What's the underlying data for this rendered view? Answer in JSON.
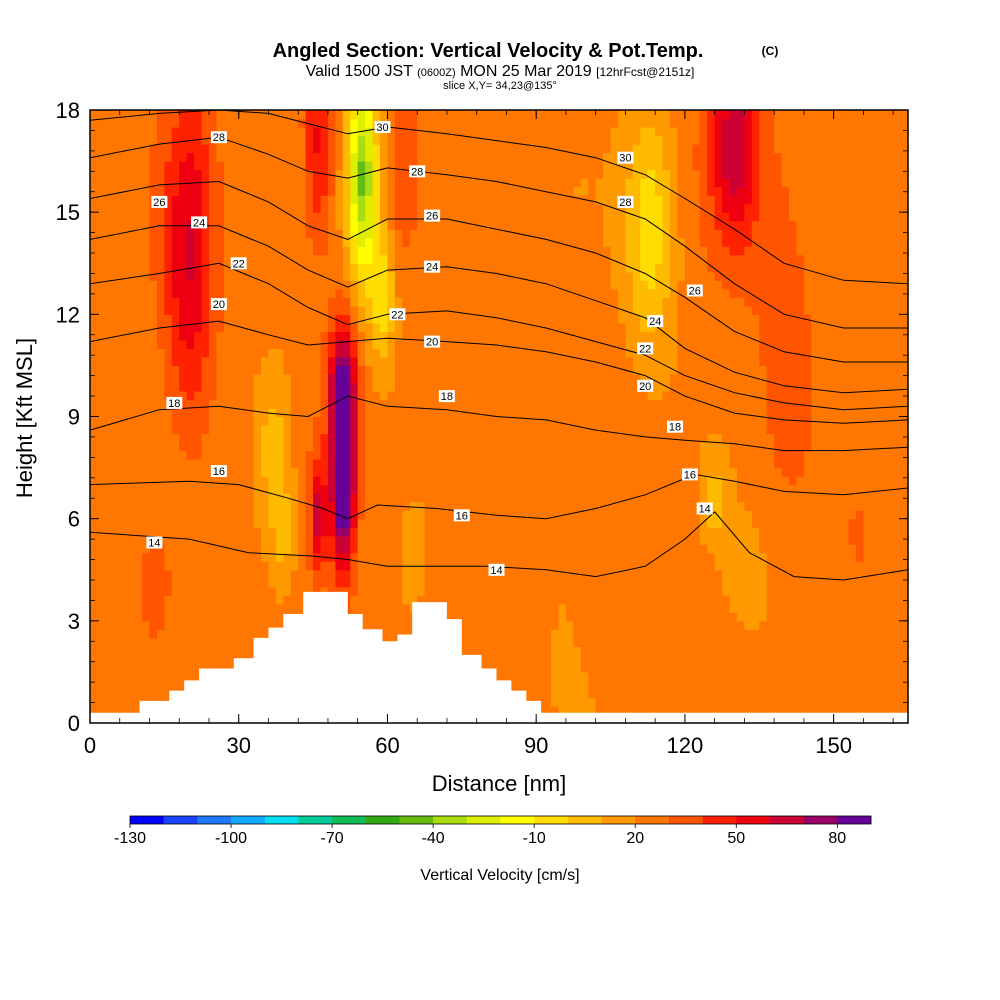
{
  "chart_data": {
    "type": "heatmap",
    "title": "Angled Section: Vertical Velocity & Pot.Temp.",
    "title_mark": "(C)",
    "subtitle": {
      "a": "Valid 1500 JST",
      "b": "(0600Z)",
      "c": "MON 25 Mar 2019",
      "d": "[12hrFcst@2151z]"
    },
    "slice_text": "slice X,Y= 34,23@135°",
    "xlabel": "Distance [nm]",
    "ylabel": "Height [Kft MSL]",
    "xlim": [
      0,
      165
    ],
    "ylim": [
      0,
      18
    ],
    "x_ticks": [
      {
        "value": 0,
        "label": "0"
      },
      {
        "value": 30,
        "label": "30"
      },
      {
        "value": 60,
        "label": "60"
      },
      {
        "value": 90,
        "label": "90"
      },
      {
        "value": 120,
        "label": "120"
      },
      {
        "value": 150,
        "label": "150"
      }
    ],
    "y_ticks": [
      {
        "value": 0,
        "label": "0"
      },
      {
        "value": 3,
        "label": "3"
      },
      {
        "value": 6,
        "label": "6"
      },
      {
        "value": 9,
        "label": "9"
      },
      {
        "value": 12,
        "label": "12"
      },
      {
        "value": 15,
        "label": "15"
      },
      {
        "value": 18,
        "label": "18"
      }
    ],
    "colorbar": {
      "title": "Vertical Velocity [cm/s]",
      "colors": [
        "#0000ff",
        "#1a44ff",
        "#2277ff",
        "#11aaff",
        "#00ddee",
        "#00cc99",
        "#11bb55",
        "#33aa11",
        "#66bb11",
        "#aadd11",
        "#ddee00",
        "#ffff00",
        "#ffdd00",
        "#ffbb00",
        "#ff9900",
        "#ff7700",
        "#ff5500",
        "#ff2200",
        "#ee0011",
        "#cc0033",
        "#990066",
        "#660099"
      ],
      "tick_labels": [
        {
          "index": 0,
          "label": "-130"
        },
        {
          "index": 3,
          "label": "-100"
        },
        {
          "index": 6,
          "label": "-70"
        },
        {
          "index": 9,
          "label": "-40"
        },
        {
          "index": 12,
          "label": "-10"
        },
        {
          "index": 15,
          "label": "20"
        },
        {
          "index": 18,
          "label": "50"
        },
        {
          "index": 21,
          "label": "80"
        }
      ]
    },
    "terrain": [
      [
        0,
        0.3
      ],
      [
        10,
        0.3
      ],
      [
        10,
        0.65
      ],
      [
        16,
        0.65
      ],
      [
        16,
        0.95
      ],
      [
        19,
        0.95
      ],
      [
        19,
        1.25
      ],
      [
        22,
        1.25
      ],
      [
        22,
        1.6
      ],
      [
        29,
        1.6
      ],
      [
        29,
        1.9
      ],
      [
        33,
        1.9
      ],
      [
        33,
        2.5
      ],
      [
        36,
        2.5
      ],
      [
        36,
        2.8
      ],
      [
        39,
        2.8
      ],
      [
        39,
        3.2
      ],
      [
        43,
        3.2
      ],
      [
        43,
        3.85
      ],
      [
        52,
        3.85
      ],
      [
        52,
        3.2
      ],
      [
        55,
        3.2
      ],
      [
        55,
        2.75
      ],
      [
        59,
        2.75
      ],
      [
        59,
        2.4
      ],
      [
        62,
        2.4
      ],
      [
        62,
        2.6
      ],
      [
        65,
        2.6
      ],
      [
        65,
        3.55
      ],
      [
        72,
        3.55
      ],
      [
        72,
        3.05
      ],
      [
        75,
        3.05
      ],
      [
        75,
        2.0
      ],
      [
        79,
        2.0
      ],
      [
        79,
        1.6
      ],
      [
        82,
        1.6
      ],
      [
        82,
        1.25
      ],
      [
        85,
        1.25
      ],
      [
        85,
        0.95
      ],
      [
        88,
        0.95
      ],
      [
        88,
        0.65
      ],
      [
        91,
        0.65
      ],
      [
        91,
        0.3
      ],
      [
        165,
        0.3
      ]
    ],
    "velocity_field": [
      {
        "x": 20,
        "y": 13.5,
        "sx": 5,
        "sy": 5,
        "v": 35
      },
      {
        "x": 13,
        "y": 4.5,
        "sx": 4,
        "sy": 2,
        "v": 10
      },
      {
        "x": 37,
        "y": 8,
        "sx": 4,
        "sy": 2.5,
        "v": -22
      },
      {
        "x": 39,
        "y": 5.5,
        "sx": 2.5,
        "sy": 1.5,
        "v": -15
      },
      {
        "x": 46,
        "y": 17,
        "sx": 3,
        "sy": 3,
        "v": 30
      },
      {
        "x": 51,
        "y": 7.5,
        "sx": 2.4,
        "sy": 2.8,
        "v": 85
      },
      {
        "x": 51,
        "y": 10,
        "sx": 3,
        "sy": 2,
        "v": 35
      },
      {
        "x": 46,
        "y": 6,
        "sx": 1.6,
        "sy": 1.6,
        "v": 40
      },
      {
        "x": 55,
        "y": 16,
        "sx": 3,
        "sy": 3,
        "v": -65
      },
      {
        "x": 59,
        "y": 12.5,
        "sx": 2.5,
        "sy": 2,
        "v": -30
      },
      {
        "x": 63,
        "y": 16.5,
        "sx": 2.5,
        "sy": 2.5,
        "v": 12
      },
      {
        "x": 65,
        "y": 4.5,
        "sx": 2.5,
        "sy": 1.4,
        "v": -10
      },
      {
        "x": 113,
        "y": 14.5,
        "sx": 5,
        "sy": 3.5,
        "v": -30
      },
      {
        "x": 126,
        "y": 6.5,
        "sx": 2,
        "sy": 1,
        "v": -20
      },
      {
        "x": 130,
        "y": 17,
        "sx": 5,
        "sy": 3,
        "v": 40
      },
      {
        "x": 140,
        "y": 11,
        "sx": 6,
        "sy": 5,
        "v": 12
      },
      {
        "x": 133,
        "y": 4,
        "sx": 6,
        "sy": 2,
        "v": -8
      },
      {
        "x": 155,
        "y": 4,
        "sx": 6,
        "sy": 3,
        "v": 5
      },
      {
        "x": 95,
        "y": 6,
        "sx": 6,
        "sy": 4,
        "v": -5
      }
    ],
    "isentropes": [
      {
        "theta": 14,
        "points": [
          [
            0,
            5.6
          ],
          [
            20,
            5.4
          ],
          [
            32,
            5.0
          ],
          [
            45,
            4.9
          ],
          [
            52,
            4.8
          ],
          [
            60,
            4.6
          ],
          [
            70,
            4.6
          ],
          [
            80,
            4.6
          ],
          [
            92,
            4.5
          ],
          [
            102,
            4.3
          ],
          [
            112,
            4.6
          ],
          [
            120,
            5.4
          ],
          [
            126,
            6.2
          ],
          [
            133,
            5.0
          ],
          [
            142,
            4.3
          ],
          [
            152,
            4.2
          ],
          [
            165,
            4.5
          ]
        ]
      },
      {
        "theta": 16,
        "points": [
          [
            0,
            7.0
          ],
          [
            20,
            7.1
          ],
          [
            30,
            7.0
          ],
          [
            40,
            6.6
          ],
          [
            47,
            6.3
          ],
          [
            52,
            6.0
          ],
          [
            58,
            6.4
          ],
          [
            70,
            6.3
          ],
          [
            82,
            6.1
          ],
          [
            92,
            6.0
          ],
          [
            102,
            6.3
          ],
          [
            112,
            6.7
          ],
          [
            122,
            7.3
          ],
          [
            130,
            7.1
          ],
          [
            140,
            6.8
          ],
          [
            152,
            6.7
          ],
          [
            165,
            6.9
          ]
        ]
      },
      {
        "theta": 18,
        "points": [
          [
            0,
            8.6
          ],
          [
            14,
            9.2
          ],
          [
            26,
            9.3
          ],
          [
            36,
            9.1
          ],
          [
            44,
            9.0
          ],
          [
            52,
            9.6
          ],
          [
            60,
            9.3
          ],
          [
            72,
            9.2
          ],
          [
            82,
            9.0
          ],
          [
            92,
            8.9
          ],
          [
            102,
            8.6
          ],
          [
            112,
            8.4
          ],
          [
            120,
            8.3
          ],
          [
            130,
            8.2
          ],
          [
            140,
            8.0
          ],
          [
            152,
            8.0
          ],
          [
            165,
            8.1
          ]
        ]
      },
      {
        "theta": 20,
        "points": [
          [
            0,
            11.2
          ],
          [
            14,
            11.6
          ],
          [
            26,
            11.8
          ],
          [
            36,
            11.4
          ],
          [
            44,
            11.1
          ],
          [
            52,
            11.2
          ],
          [
            60,
            11.3
          ],
          [
            72,
            11.2
          ],
          [
            82,
            11.1
          ],
          [
            92,
            10.9
          ],
          [
            102,
            10.6
          ],
          [
            112,
            10.2
          ],
          [
            120,
            9.6
          ],
          [
            130,
            9.1
          ],
          [
            140,
            8.9
          ],
          [
            152,
            8.8
          ],
          [
            165,
            8.9
          ]
        ]
      },
      {
        "theta": 22,
        "points": [
          [
            0,
            12.9
          ],
          [
            14,
            13.2
          ],
          [
            26,
            13.5
          ],
          [
            36,
            12.9
          ],
          [
            44,
            12.2
          ],
          [
            52,
            11.7
          ],
          [
            60,
            12.0
          ],
          [
            72,
            12.1
          ],
          [
            82,
            11.9
          ],
          [
            92,
            11.6
          ],
          [
            102,
            11.2
          ],
          [
            112,
            10.8
          ],
          [
            120,
            10.2
          ],
          [
            130,
            9.7
          ],
          [
            140,
            9.4
          ],
          [
            152,
            9.2
          ],
          [
            165,
            9.3
          ]
        ]
      },
      {
        "theta": 24,
        "points": [
          [
            0,
            14.2
          ],
          [
            14,
            14.6
          ],
          [
            26,
            14.6
          ],
          [
            36,
            14.0
          ],
          [
            44,
            13.3
          ],
          [
            52,
            12.8
          ],
          [
            60,
            13.3
          ],
          [
            72,
            13.4
          ],
          [
            82,
            13.2
          ],
          [
            92,
            12.9
          ],
          [
            102,
            12.4
          ],
          [
            112,
            11.9
          ],
          [
            120,
            11.0
          ],
          [
            130,
            10.3
          ],
          [
            140,
            9.9
          ],
          [
            152,
            9.7
          ],
          [
            165,
            9.8
          ]
        ]
      },
      {
        "theta": 26,
        "points": [
          [
            0,
            15.4
          ],
          [
            14,
            15.8
          ],
          [
            26,
            15.9
          ],
          [
            36,
            15.3
          ],
          [
            44,
            14.6
          ],
          [
            52,
            14.2
          ],
          [
            60,
            14.8
          ],
          [
            72,
            14.8
          ],
          [
            82,
            14.5
          ],
          [
            92,
            14.2
          ],
          [
            102,
            13.8
          ],
          [
            112,
            13.2
          ],
          [
            120,
            12.5
          ],
          [
            130,
            11.5
          ],
          [
            140,
            10.9
          ],
          [
            152,
            10.6
          ],
          [
            165,
            10.6
          ]
        ]
      },
      {
        "theta": 28,
        "points": [
          [
            0,
            16.6
          ],
          [
            14,
            17.0
          ],
          [
            26,
            17.2
          ],
          [
            36,
            16.7
          ],
          [
            44,
            16.2
          ],
          [
            52,
            16.0
          ],
          [
            60,
            16.3
          ],
          [
            72,
            16.1
          ],
          [
            82,
            15.9
          ],
          [
            92,
            15.6
          ],
          [
            102,
            15.3
          ],
          [
            112,
            14.8
          ],
          [
            120,
            14.0
          ],
          [
            130,
            12.9
          ],
          [
            140,
            12.0
          ],
          [
            152,
            11.6
          ],
          [
            165,
            11.6
          ]
        ]
      },
      {
        "theta": 30,
        "points": [
          [
            0,
            17.7
          ],
          [
            14,
            17.9
          ],
          [
            26,
            18.0
          ],
          [
            36,
            17.9
          ],
          [
            44,
            17.6
          ],
          [
            52,
            17.3
          ],
          [
            60,
            17.5
          ],
          [
            72,
            17.3
          ],
          [
            82,
            17.1
          ],
          [
            92,
            16.9
          ],
          [
            102,
            16.6
          ],
          [
            112,
            16.1
          ],
          [
            120,
            15.4
          ],
          [
            130,
            14.5
          ],
          [
            140,
            13.5
          ],
          [
            152,
            13.0
          ],
          [
            165,
            12.9
          ]
        ]
      }
    ],
    "contour_labels": [
      {
        "label": "28",
        "x": 26,
        "y": 17.2
      },
      {
        "label": "26",
        "x": 14,
        "y": 15.3
      },
      {
        "label": "24",
        "x": 22,
        "y": 14.7
      },
      {
        "label": "22",
        "x": 30,
        "y": 13.5
      },
      {
        "label": "20",
        "x": 26,
        "y": 12.3
      },
      {
        "label": "18",
        "x": 17,
        "y": 9.4
      },
      {
        "label": "16",
        "x": 26,
        "y": 7.4
      },
      {
        "label": "14",
        "x": 13,
        "y": 5.3
      },
      {
        "label": "30",
        "x": 59,
        "y": 17.5
      },
      {
        "label": "28",
        "x": 66,
        "y": 16.2
      },
      {
        "label": "26",
        "x": 69,
        "y": 14.9
      },
      {
        "label": "24",
        "x": 69,
        "y": 13.4
      },
      {
        "label": "22",
        "x": 62,
        "y": 12.0
      },
      {
        "label": "20",
        "x": 69,
        "y": 11.2
      },
      {
        "label": "18",
        "x": 72,
        "y": 9.6
      },
      {
        "label": "16",
        "x": 75,
        "y": 6.1
      },
      {
        "label": "14",
        "x": 82,
        "y": 4.5
      },
      {
        "label": "30",
        "x": 108,
        "y": 16.6
      },
      {
        "label": "28",
        "x": 108,
        "y": 15.3
      },
      {
        "label": "26",
        "x": 122,
        "y": 12.7
      },
      {
        "label": "24",
        "x": 114,
        "y": 11.8
      },
      {
        "label": "22",
        "x": 112,
        "y": 11.0
      },
      {
        "label": "20",
        "x": 112,
        "y": 9.9
      },
      {
        "label": "18",
        "x": 118,
        "y": 8.7
      },
      {
        "label": "16",
        "x": 121,
        "y": 7.3
      },
      {
        "label": "14",
        "x": 124,
        "y": 6.3
      }
    ]
  }
}
